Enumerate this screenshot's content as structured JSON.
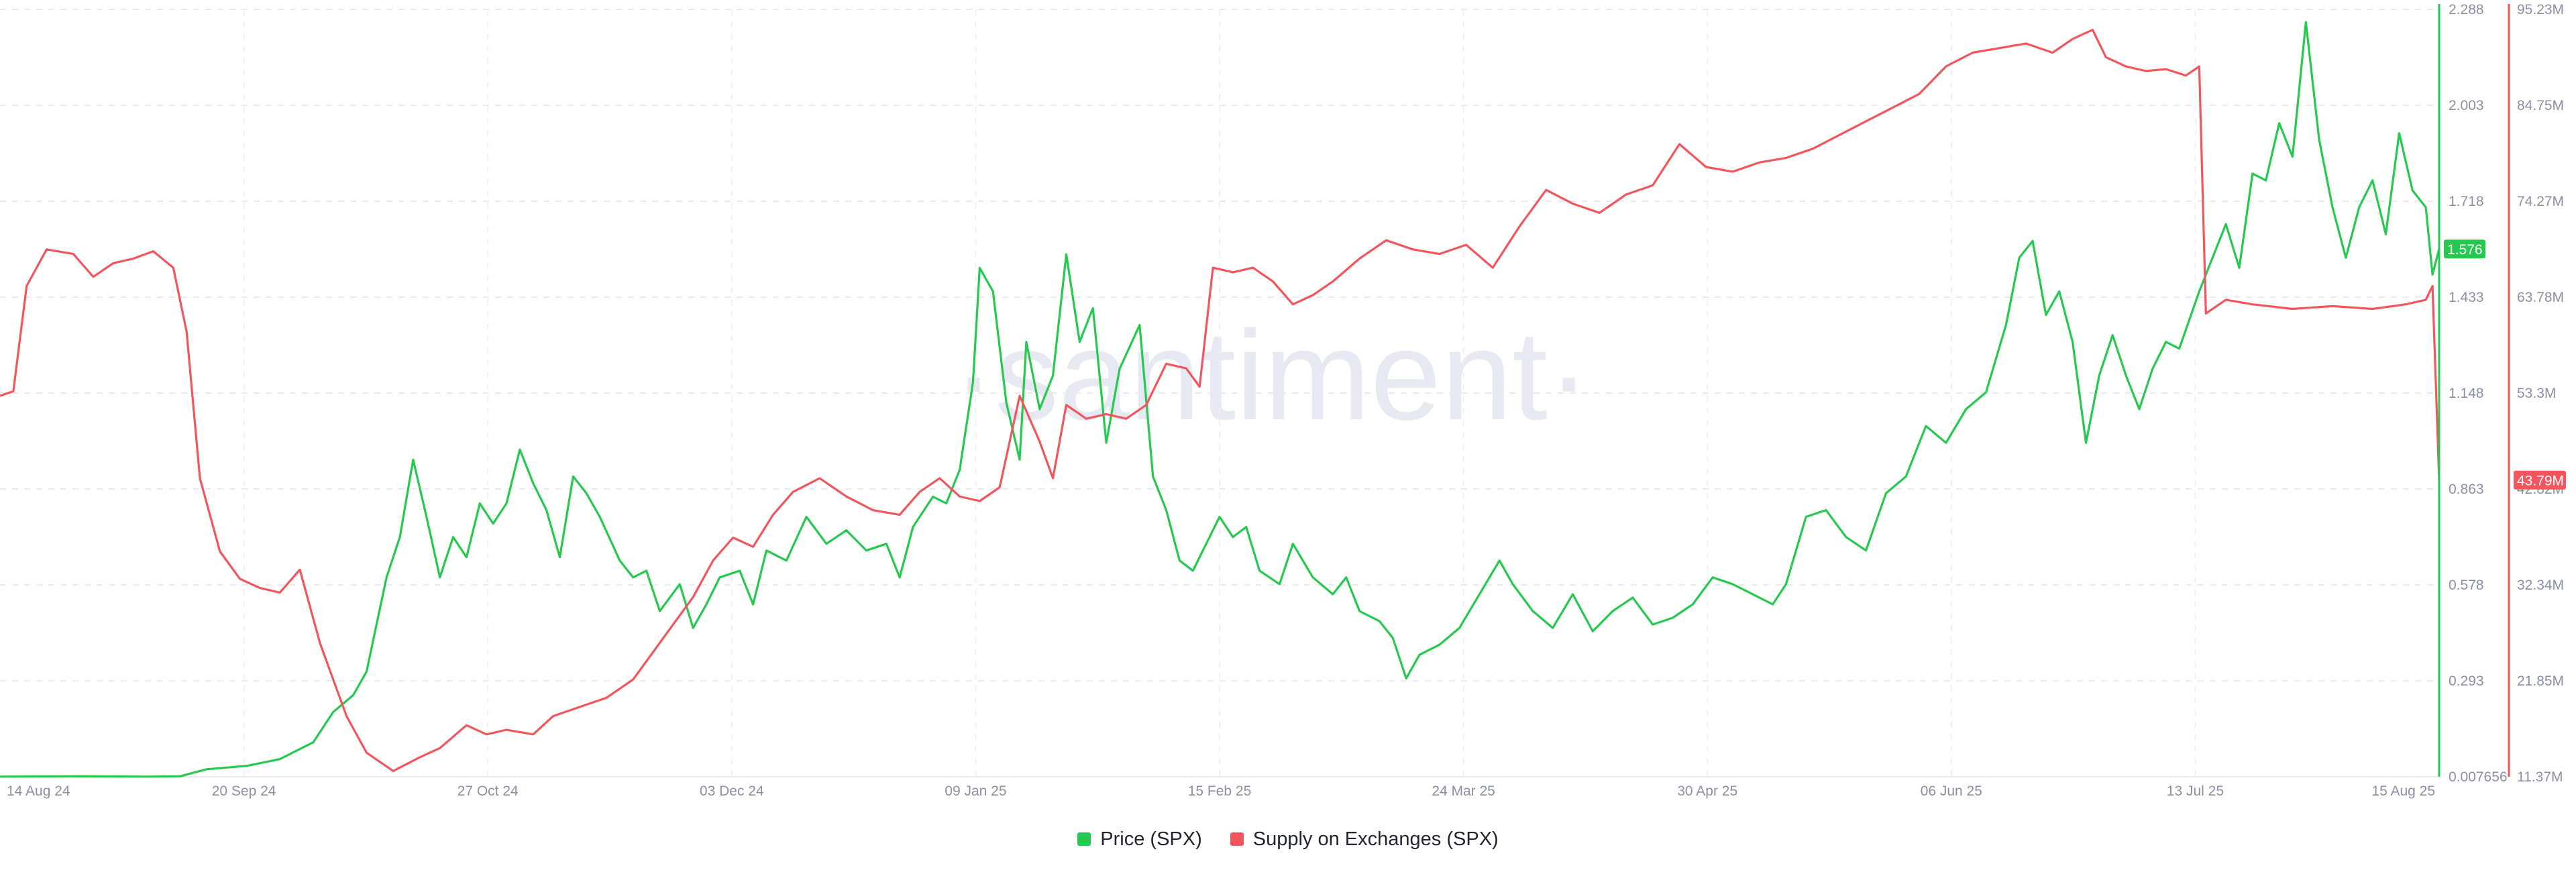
{
  "watermark": "·santiment·",
  "chart_data": {
    "type": "line",
    "x_tick_labels": [
      "14 Aug 24",
      "20 Sep 24",
      "27 Oct 24",
      "03 Dec 24",
      "09 Jan 25",
      "15 Feb 25",
      "24 Mar 25",
      "30 Apr 25",
      "06 Jun 25",
      "13 Jul 25",
      "15 Aug 25"
    ],
    "x_range": [
      "2024-08-14",
      "2025-08-15"
    ],
    "grid": true,
    "legend_position": "bottom-center",
    "y_axes": {
      "price": {
        "ticks": [
          "2.288",
          "2.003",
          "1.718",
          "1.433",
          "1.148",
          "0.863",
          "0.578",
          "0.293",
          "0.007656"
        ],
        "ylim": [
          0.007656,
          2.288
        ],
        "color": "#26c950",
        "current_label": "1.576"
      },
      "supply": {
        "ticks": [
          "95.23M",
          "84.75M",
          "74.27M",
          "63.78M",
          "53.3M",
          "42.82M",
          "32.34M",
          "21.85M",
          "11.37M"
        ],
        "ylim": [
          11.37,
          95.23
        ],
        "unit": "M",
        "color": "#f2565c",
        "current_label": "43.79M"
      }
    },
    "series": [
      {
        "name": "Price (SPX)",
        "axis": "price",
        "color": "#26c950",
        "points": [
          [
            "2024-08-14",
            0.008
          ],
          [
            "2024-08-25",
            0.009
          ],
          [
            "2024-09-05",
            0.008
          ],
          [
            "2024-09-10",
            0.009
          ],
          [
            "2024-09-14",
            0.03
          ],
          [
            "2024-09-20",
            0.04
          ],
          [
            "2024-09-25",
            0.06
          ],
          [
            "2024-09-30",
            0.11
          ],
          [
            "2024-10-03",
            0.2
          ],
          [
            "2024-10-06",
            0.25
          ],
          [
            "2024-10-08",
            0.32
          ],
          [
            "2024-10-11",
            0.6
          ],
          [
            "2024-10-13",
            0.72
          ],
          [
            "2024-10-15",
            0.95
          ],
          [
            "2024-10-17",
            0.78
          ],
          [
            "2024-10-19",
            0.6
          ],
          [
            "2024-10-21",
            0.72
          ],
          [
            "2024-10-23",
            0.66
          ],
          [
            "2024-10-25",
            0.82
          ],
          [
            "2024-10-27",
            0.76
          ],
          [
            "2024-10-29",
            0.82
          ],
          [
            "2024-10-31",
            0.98
          ],
          [
            "2024-11-02",
            0.88
          ],
          [
            "2024-11-04",
            0.8
          ],
          [
            "2024-11-06",
            0.66
          ],
          [
            "2024-11-08",
            0.9
          ],
          [
            "2024-11-10",
            0.85
          ],
          [
            "2024-11-12",
            0.78
          ],
          [
            "2024-11-15",
            0.65
          ],
          [
            "2024-11-17",
            0.6
          ],
          [
            "2024-11-19",
            0.62
          ],
          [
            "2024-11-21",
            0.5
          ],
          [
            "2024-11-24",
            0.58
          ],
          [
            "2024-11-26",
            0.45
          ],
          [
            "2024-11-28",
            0.52
          ],
          [
            "2024-11-30",
            0.6
          ],
          [
            "2024-12-03",
            0.62
          ],
          [
            "2024-12-05",
            0.52
          ],
          [
            "2024-12-07",
            0.68
          ],
          [
            "2024-12-10",
            0.65
          ],
          [
            "2024-12-13",
            0.78
          ],
          [
            "2024-12-16",
            0.7
          ],
          [
            "2024-12-19",
            0.74
          ],
          [
            "2024-12-22",
            0.68
          ],
          [
            "2024-12-25",
            0.7
          ],
          [
            "2024-12-27",
            0.6
          ],
          [
            "2024-12-29",
            0.75
          ],
          [
            "2025-01-01",
            0.84
          ],
          [
            "2025-01-03",
            0.82
          ],
          [
            "2025-01-05",
            0.92
          ],
          [
            "2025-01-07",
            1.18
          ],
          [
            "2025-01-08",
            1.52
          ],
          [
            "2025-01-10",
            1.45
          ],
          [
            "2025-01-12",
            1.12
          ],
          [
            "2025-01-14",
            0.95
          ],
          [
            "2025-01-15",
            1.3
          ],
          [
            "2025-01-17",
            1.1
          ],
          [
            "2025-01-19",
            1.2
          ],
          [
            "2025-01-21",
            1.56
          ],
          [
            "2025-01-23",
            1.3
          ],
          [
            "2025-01-25",
            1.4
          ],
          [
            "2025-01-27",
            1.0
          ],
          [
            "2025-01-29",
            1.22
          ],
          [
            "2025-02-01",
            1.35
          ],
          [
            "2025-02-03",
            0.9
          ],
          [
            "2025-02-05",
            0.8
          ],
          [
            "2025-02-07",
            0.65
          ],
          [
            "2025-02-09",
            0.62
          ],
          [
            "2025-02-11",
            0.7
          ],
          [
            "2025-02-13",
            0.78
          ],
          [
            "2025-02-15",
            0.72
          ],
          [
            "2025-02-17",
            0.75
          ],
          [
            "2025-02-19",
            0.62
          ],
          [
            "2025-02-22",
            0.58
          ],
          [
            "2025-02-24",
            0.7
          ],
          [
            "2025-02-27",
            0.6
          ],
          [
            "2025-03-02",
            0.55
          ],
          [
            "2025-03-04",
            0.6
          ],
          [
            "2025-03-06",
            0.5
          ],
          [
            "2025-03-09",
            0.47
          ],
          [
            "2025-03-11",
            0.42
          ],
          [
            "2025-03-13",
            0.3
          ],
          [
            "2025-03-15",
            0.37
          ],
          [
            "2025-03-18",
            0.4
          ],
          [
            "2025-03-21",
            0.45
          ],
          [
            "2025-03-24",
            0.55
          ],
          [
            "2025-03-27",
            0.65
          ],
          [
            "2025-03-29",
            0.58
          ],
          [
            "2025-04-01",
            0.5
          ],
          [
            "2025-04-04",
            0.45
          ],
          [
            "2025-04-07",
            0.55
          ],
          [
            "2025-04-10",
            0.44
          ],
          [
            "2025-04-13",
            0.5
          ],
          [
            "2025-04-16",
            0.54
          ],
          [
            "2025-04-19",
            0.46
          ],
          [
            "2025-04-22",
            0.48
          ],
          [
            "2025-04-25",
            0.52
          ],
          [
            "2025-04-28",
            0.6
          ],
          [
            "2025-05-01",
            0.58
          ],
          [
            "2025-05-04",
            0.55
          ],
          [
            "2025-05-07",
            0.52
          ],
          [
            "2025-05-09",
            0.58
          ],
          [
            "2025-05-12",
            0.78
          ],
          [
            "2025-05-15",
            0.8
          ],
          [
            "2025-05-18",
            0.72
          ],
          [
            "2025-05-21",
            0.68
          ],
          [
            "2025-05-24",
            0.85
          ],
          [
            "2025-05-27",
            0.9
          ],
          [
            "2025-05-30",
            1.05
          ],
          [
            "2025-06-02",
            1.0
          ],
          [
            "2025-06-05",
            1.1
          ],
          [
            "2025-06-08",
            1.15
          ],
          [
            "2025-06-11",
            1.35
          ],
          [
            "2025-06-13",
            1.55
          ],
          [
            "2025-06-15",
            1.6
          ],
          [
            "2025-06-17",
            1.38
          ],
          [
            "2025-06-19",
            1.45
          ],
          [
            "2025-06-21",
            1.3
          ],
          [
            "2025-06-23",
            1.0
          ],
          [
            "2025-06-25",
            1.2
          ],
          [
            "2025-06-27",
            1.32
          ],
          [
            "2025-06-29",
            1.2
          ],
          [
            "2025-07-01",
            1.1
          ],
          [
            "2025-07-03",
            1.22
          ],
          [
            "2025-07-05",
            1.3
          ],
          [
            "2025-07-07",
            1.28
          ],
          [
            "2025-07-10",
            1.45
          ],
          [
            "2025-07-12",
            1.55
          ],
          [
            "2025-07-14",
            1.65
          ],
          [
            "2025-07-16",
            1.52
          ],
          [
            "2025-07-18",
            1.8
          ],
          [
            "2025-07-20",
            1.78
          ],
          [
            "2025-07-22",
            1.95
          ],
          [
            "2025-07-24",
            1.85
          ],
          [
            "2025-07-26",
            2.25
          ],
          [
            "2025-07-28",
            1.9
          ],
          [
            "2025-07-30",
            1.7
          ],
          [
            "2025-08-01",
            1.55
          ],
          [
            "2025-08-03",
            1.7
          ],
          [
            "2025-08-05",
            1.78
          ],
          [
            "2025-08-07",
            1.62
          ],
          [
            "2025-08-09",
            1.92
          ],
          [
            "2025-08-11",
            1.75
          ],
          [
            "2025-08-13",
            1.7
          ],
          [
            "2025-08-14",
            1.5
          ],
          [
            "2025-08-15",
            1.576
          ]
        ]
      },
      {
        "name": "Supply on Exchanges (SPX)",
        "axis": "supply",
        "color": "#f2565c",
        "points": [
          [
            "2024-08-14",
            53.0
          ],
          [
            "2024-08-16",
            53.5
          ],
          [
            "2024-08-18",
            65.0
          ],
          [
            "2024-08-21",
            69.0
          ],
          [
            "2024-08-25",
            68.5
          ],
          [
            "2024-08-28",
            66.0
          ],
          [
            "2024-08-31",
            67.5
          ],
          [
            "2024-09-03",
            68.0
          ],
          [
            "2024-09-06",
            68.8
          ],
          [
            "2024-09-09",
            67.0
          ],
          [
            "2024-09-11",
            60.0
          ],
          [
            "2024-09-13",
            44.0
          ],
          [
            "2024-09-16",
            36.0
          ],
          [
            "2024-09-19",
            33.0
          ],
          [
            "2024-09-22",
            32.0
          ],
          [
            "2024-09-25",
            31.5
          ],
          [
            "2024-09-28",
            34.0
          ],
          [
            "2024-10-01",
            26.0
          ],
          [
            "2024-10-03",
            22.0
          ],
          [
            "2024-10-05",
            18.0
          ],
          [
            "2024-10-08",
            14.0
          ],
          [
            "2024-10-12",
            12.0
          ],
          [
            "2024-10-16",
            13.5
          ],
          [
            "2024-10-19",
            14.5
          ],
          [
            "2024-10-23",
            17.0
          ],
          [
            "2024-10-26",
            16.0
          ],
          [
            "2024-10-29",
            16.5
          ],
          [
            "2024-11-02",
            16.0
          ],
          [
            "2024-11-05",
            18.0
          ],
          [
            "2024-11-09",
            19.0
          ],
          [
            "2024-11-13",
            20.0
          ],
          [
            "2024-11-17",
            22.0
          ],
          [
            "2024-11-20",
            25.0
          ],
          [
            "2024-11-23",
            28.0
          ],
          [
            "2024-11-26",
            31.0
          ],
          [
            "2024-11-29",
            35.0
          ],
          [
            "2024-12-02",
            37.5
          ],
          [
            "2024-12-05",
            36.5
          ],
          [
            "2024-12-08",
            40.0
          ],
          [
            "2024-12-11",
            42.5
          ],
          [
            "2024-12-15",
            44.0
          ],
          [
            "2024-12-19",
            42.0
          ],
          [
            "2024-12-23",
            40.5
          ],
          [
            "2024-12-27",
            40.0
          ],
          [
            "2024-12-30",
            42.5
          ],
          [
            "2025-01-02",
            44.0
          ],
          [
            "2025-01-05",
            42.0
          ],
          [
            "2025-01-08",
            41.5
          ],
          [
            "2025-01-11",
            43.0
          ],
          [
            "2025-01-14",
            53.0
          ],
          [
            "2025-01-17",
            48.0
          ],
          [
            "2025-01-19",
            44.0
          ],
          [
            "2025-01-21",
            52.0
          ],
          [
            "2025-01-24",
            50.5
          ],
          [
            "2025-01-27",
            51.0
          ],
          [
            "2025-01-30",
            50.5
          ],
          [
            "2025-02-02",
            52.0
          ],
          [
            "2025-02-05",
            56.5
          ],
          [
            "2025-02-08",
            56.0
          ],
          [
            "2025-02-10",
            54.0
          ],
          [
            "2025-02-12",
            67.0
          ],
          [
            "2025-02-15",
            66.5
          ],
          [
            "2025-02-18",
            67.0
          ],
          [
            "2025-02-21",
            65.5
          ],
          [
            "2025-02-24",
            63.0
          ],
          [
            "2025-02-27",
            64.0
          ],
          [
            "2025-03-02",
            65.5
          ],
          [
            "2025-03-06",
            68.0
          ],
          [
            "2025-03-10",
            70.0
          ],
          [
            "2025-03-14",
            69.0
          ],
          [
            "2025-03-18",
            68.5
          ],
          [
            "2025-03-22",
            69.5
          ],
          [
            "2025-03-26",
            67.0
          ],
          [
            "2025-03-30",
            71.5
          ],
          [
            "2025-04-03",
            75.5
          ],
          [
            "2025-04-07",
            74.0
          ],
          [
            "2025-04-11",
            73.0
          ],
          [
            "2025-04-15",
            75.0
          ],
          [
            "2025-04-19",
            76.0
          ],
          [
            "2025-04-23",
            80.5
          ],
          [
            "2025-04-27",
            78.0
          ],
          [
            "2025-05-01",
            77.5
          ],
          [
            "2025-05-05",
            78.5
          ],
          [
            "2025-05-09",
            79.0
          ],
          [
            "2025-05-13",
            80.0
          ],
          [
            "2025-05-17",
            81.5
          ],
          [
            "2025-05-21",
            83.0
          ],
          [
            "2025-05-25",
            84.5
          ],
          [
            "2025-05-29",
            86.0
          ],
          [
            "2025-06-02",
            89.0
          ],
          [
            "2025-06-06",
            90.5
          ],
          [
            "2025-06-10",
            91.0
          ],
          [
            "2025-06-14",
            91.5
          ],
          [
            "2025-06-18",
            90.5
          ],
          [
            "2025-06-21",
            92.0
          ],
          [
            "2025-06-24",
            93.0
          ],
          [
            "2025-06-26",
            90.0
          ],
          [
            "2025-06-29",
            89.0
          ],
          [
            "2025-07-02",
            88.5
          ],
          [
            "2025-07-05",
            88.7
          ],
          [
            "2025-07-08",
            88.0
          ],
          [
            "2025-07-10",
            89.0
          ],
          [
            "2025-07-11",
            62.0
          ],
          [
            "2025-07-14",
            63.5
          ],
          [
            "2025-07-18",
            63.0
          ],
          [
            "2025-07-24",
            62.5
          ],
          [
            "2025-07-30",
            62.8
          ],
          [
            "2025-08-05",
            62.5
          ],
          [
            "2025-08-10",
            63.0
          ],
          [
            "2025-08-13",
            63.5
          ],
          [
            "2025-08-14",
            65.0
          ],
          [
            "2025-08-15",
            43.79
          ]
        ]
      }
    ]
  }
}
